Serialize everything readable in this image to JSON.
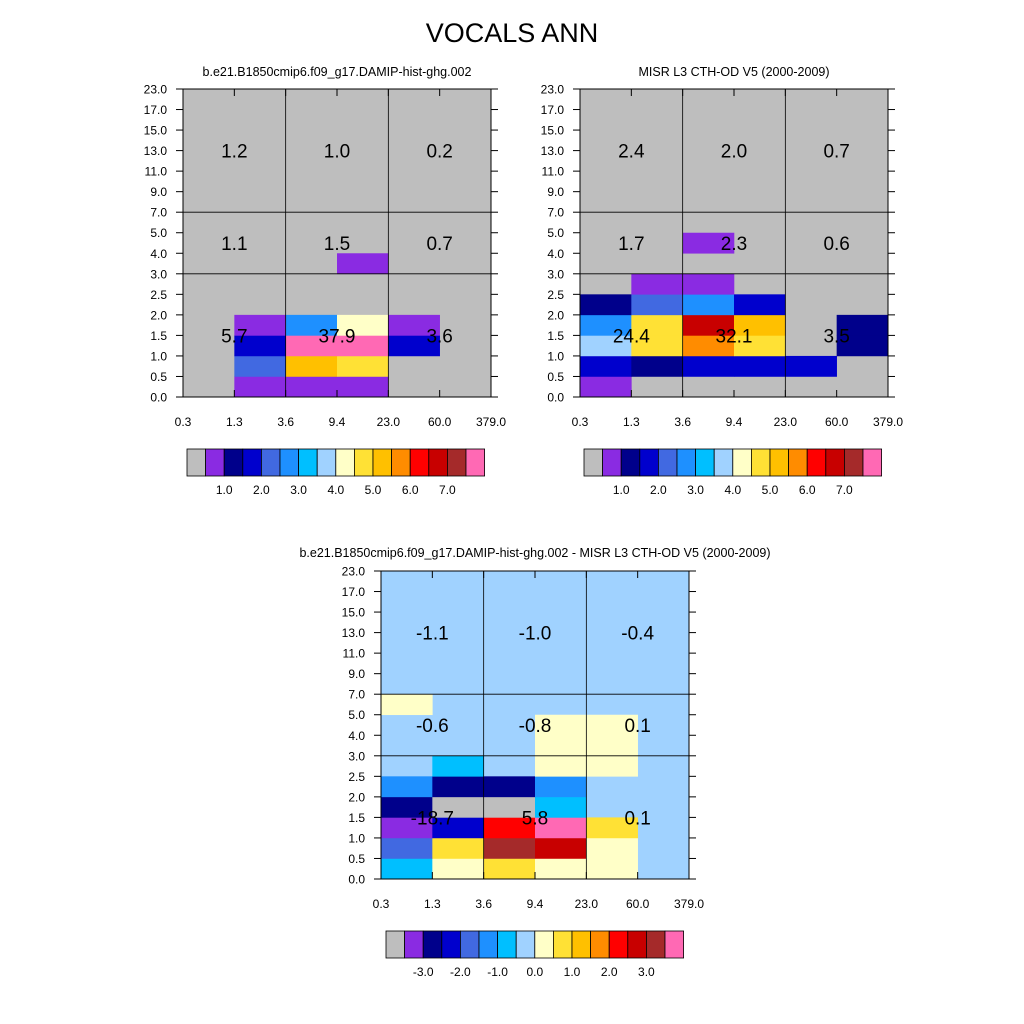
{
  "page": {
    "title": "VOCALS ANN"
  },
  "colors": {
    "missing": "#bebebe",
    "palette": [
      "#bebebe",
      "#8a2be2",
      "#00008b",
      "#0000cd",
      "#4169e1",
      "#1e90ff",
      "#00bfff",
      "#a0d2ff",
      "#ffffc8",
      "#ffe135",
      "#ffc000",
      "#ff8c00",
      "#ff0000",
      "#c80000",
      "#a52a2a",
      "#ff69b4"
    ],
    "diff_background": "#a0d2ff"
  },
  "chart_data": [
    {
      "id": "model",
      "type": "heatmap",
      "title": "b.e21.B1850cmip6.f09_g17.DAMIP-hist-ghg.002",
      "x_ticks": [
        "0.3",
        "1.3",
        "3.6",
        "9.4",
        "23.0",
        "60.0",
        "379.0"
      ],
      "y_ticks": [
        "0.0",
        "0.5",
        "1.0",
        "1.5",
        "2.0",
        "2.5",
        "3.0",
        "4.0",
        "5.0",
        "7.0",
        "9.0",
        "11.0",
        "13.0",
        "15.0",
        "17.0",
        "23.0"
      ],
      "background": "missing",
      "cells": [
        {
          "x": 1,
          "y": 0,
          "c": 1
        },
        {
          "x": 2,
          "y": 0,
          "c": 1
        },
        {
          "x": 3,
          "y": 0,
          "c": 1
        },
        {
          "x": 1,
          "y": 1,
          "c": 4
        },
        {
          "x": 2,
          "y": 1,
          "c": 10
        },
        {
          "x": 3,
          "y": 1,
          "c": 9
        },
        {
          "x": 1,
          "y": 2,
          "c": 3
        },
        {
          "x": 2,
          "y": 2,
          "c": 15
        },
        {
          "x": 3,
          "y": 2,
          "c": 15
        },
        {
          "x": 4,
          "y": 2,
          "c": 3
        },
        {
          "x": 1,
          "y": 3,
          "c": 1
        },
        {
          "x": 2,
          "y": 3,
          "c": 5
        },
        {
          "x": 3,
          "y": 3,
          "c": 8
        },
        {
          "x": 4,
          "y": 3,
          "c": 1
        },
        {
          "x": 3,
          "y": 6,
          "c": 1
        }
      ],
      "region_labels": [
        {
          "text": "5.7",
          "col": 0,
          "row": 0
        },
        {
          "text": "37.9",
          "col": 1,
          "row": 0
        },
        {
          "text": "3.6",
          "col": 2,
          "row": 0
        },
        {
          "text": "1.1",
          "col": 0,
          "row": 1
        },
        {
          "text": "1.5",
          "col": 1,
          "row": 1
        },
        {
          "text": "0.7",
          "col": 2,
          "row": 1
        },
        {
          "text": "1.2",
          "col": 0,
          "row": 2
        },
        {
          "text": "1.0",
          "col": 1,
          "row": 2
        },
        {
          "text": "0.2",
          "col": 2,
          "row": 2
        }
      ],
      "colorbar": {
        "labels": [
          "1.0",
          "2.0",
          "3.0",
          "4.0",
          "5.0",
          "6.0",
          "7.0"
        ]
      }
    },
    {
      "id": "obs",
      "type": "heatmap",
      "title": "MISR L3 CTH-OD V5 (2000-2009)",
      "x_ticks": [
        "0.3",
        "1.3",
        "3.6",
        "9.4",
        "23.0",
        "60.0",
        "379.0"
      ],
      "y_ticks": [
        "0.0",
        "0.5",
        "1.0",
        "1.5",
        "2.0",
        "2.5",
        "3.0",
        "4.0",
        "5.0",
        "7.0",
        "9.0",
        "11.0",
        "13.0",
        "15.0",
        "17.0",
        "23.0"
      ],
      "background": "missing",
      "cells": [
        {
          "x": 0,
          "y": 0,
          "c": 1
        },
        {
          "x": 0,
          "y": 1,
          "c": 3
        },
        {
          "x": 1,
          "y": 1,
          "c": 2
        },
        {
          "x": 2,
          "y": 1,
          "c": 3
        },
        {
          "x": 3,
          "y": 1,
          "c": 3
        },
        {
          "x": 4,
          "y": 1,
          "c": 3
        },
        {
          "x": 0,
          "y": 2,
          "c": 7
        },
        {
          "x": 1,
          "y": 2,
          "c": 9
        },
        {
          "x": 2,
          "y": 2,
          "c": 11
        },
        {
          "x": 3,
          "y": 2,
          "c": 9
        },
        {
          "x": 5,
          "y": 2,
          "c": 2
        },
        {
          "x": 0,
          "y": 3,
          "c": 5
        },
        {
          "x": 1,
          "y": 3,
          "c": 9
        },
        {
          "x": 2,
          "y": 3,
          "c": 13
        },
        {
          "x": 3,
          "y": 3,
          "c": 10
        },
        {
          "x": 5,
          "y": 3,
          "c": 2
        },
        {
          "x": 0,
          "y": 4,
          "c": 2
        },
        {
          "x": 1,
          "y": 4,
          "c": 4
        },
        {
          "x": 2,
          "y": 4,
          "c": 5
        },
        {
          "x": 3,
          "y": 4,
          "c": 3
        },
        {
          "x": 1,
          "y": 5,
          "c": 1
        },
        {
          "x": 2,
          "y": 5,
          "c": 1
        },
        {
          "x": 2,
          "y": 7,
          "c": 1
        }
      ],
      "region_labels": [
        {
          "text": "24.4",
          "col": 0,
          "row": 0
        },
        {
          "text": "32.1",
          "col": 1,
          "row": 0
        },
        {
          "text": "3.5",
          "col": 2,
          "row": 0
        },
        {
          "text": "1.7",
          "col": 0,
          "row": 1
        },
        {
          "text": "2.3",
          "col": 1,
          "row": 1
        },
        {
          "text": "0.6",
          "col": 2,
          "row": 1
        },
        {
          "text": "2.4",
          "col": 0,
          "row": 2
        },
        {
          "text": "2.0",
          "col": 1,
          "row": 2
        },
        {
          "text": "0.7",
          "col": 2,
          "row": 2
        }
      ],
      "colorbar": {
        "labels": [
          "1.0",
          "2.0",
          "3.0",
          "4.0",
          "5.0",
          "6.0",
          "7.0"
        ]
      }
    },
    {
      "id": "diff",
      "type": "heatmap",
      "title": "b.e21.B1850cmip6.f09_g17.DAMIP-hist-ghg.002 - MISR L3 CTH-OD V5 (2000-2009)",
      "x_ticks": [
        "0.3",
        "1.3",
        "3.6",
        "9.4",
        "23.0",
        "60.0",
        "379.0"
      ],
      "y_ticks": [
        "0.0",
        "0.5",
        "1.0",
        "1.5",
        "2.0",
        "2.5",
        "3.0",
        "4.0",
        "5.0",
        "7.0",
        "9.0",
        "11.0",
        "13.0",
        "15.0",
        "17.0",
        "23.0"
      ],
      "background": "diff_background",
      "cells": [
        {
          "x": 0,
          "y": 0,
          "c": 6
        },
        {
          "x": 1,
          "y": 0,
          "c": 8
        },
        {
          "x": 2,
          "y": 0,
          "c": 9
        },
        {
          "x": 3,
          "y": 0,
          "c": 8
        },
        {
          "x": 4,
          "y": 0,
          "c": 8
        },
        {
          "x": 0,
          "y": 1,
          "c": 4
        },
        {
          "x": 1,
          "y": 1,
          "c": 9
        },
        {
          "x": 2,
          "y": 1,
          "c": 14
        },
        {
          "x": 3,
          "y": 1,
          "c": 13
        },
        {
          "x": 4,
          "y": 1,
          "c": 8
        },
        {
          "x": 0,
          "y": 2,
          "c": 1
        },
        {
          "x": 1,
          "y": 2,
          "c": 3
        },
        {
          "x": 2,
          "y": 2,
          "c": 12
        },
        {
          "x": 3,
          "y": 2,
          "c": 15
        },
        {
          "x": 4,
          "y": 2,
          "c": 9
        },
        {
          "x": 0,
          "y": 3,
          "c": 2
        },
        {
          "x": 1,
          "y": 3,
          "c": 0
        },
        {
          "x": 2,
          "y": 3,
          "c": 0
        },
        {
          "x": 3,
          "y": 3,
          "c": 6
        },
        {
          "x": 0,
          "y": 4,
          "c": 5
        },
        {
          "x": 1,
          "y": 4,
          "c": 2
        },
        {
          "x": 2,
          "y": 4,
          "c": 2
        },
        {
          "x": 3,
          "y": 4,
          "c": 5
        },
        {
          "x": 1,
          "y": 5,
          "c": 6
        },
        {
          "x": 3,
          "y": 5,
          "c": 8
        },
        {
          "x": 4,
          "y": 5,
          "c": 8
        },
        {
          "x": 3,
          "y": 6,
          "c": 8
        },
        {
          "x": 4,
          "y": 6,
          "c": 8
        },
        {
          "x": 3,
          "y": 7,
          "c": 8
        },
        {
          "x": 4,
          "y": 7,
          "c": 8
        },
        {
          "x": 0,
          "y": 8,
          "c": 8
        }
      ],
      "region_labels": [
        {
          "text": "-18.7",
          "col": 0,
          "row": 0
        },
        {
          "text": "5.8",
          "col": 1,
          "row": 0
        },
        {
          "text": "0.1",
          "col": 2,
          "row": 0
        },
        {
          "text": "-0.6",
          "col": 0,
          "row": 1
        },
        {
          "text": "-0.8",
          "col": 1,
          "row": 1
        },
        {
          "text": "0.1",
          "col": 2,
          "row": 1
        },
        {
          "text": "-1.1",
          "col": 0,
          "row": 2
        },
        {
          "text": "-1.0",
          "col": 1,
          "row": 2
        },
        {
          "text": "-0.4",
          "col": 2,
          "row": 2
        }
      ],
      "colorbar": {
        "labels": [
          "-3.0",
          "-2.0",
          "-1.0",
          "0.0",
          "1.0",
          "2.0",
          "3.0"
        ]
      }
    }
  ]
}
